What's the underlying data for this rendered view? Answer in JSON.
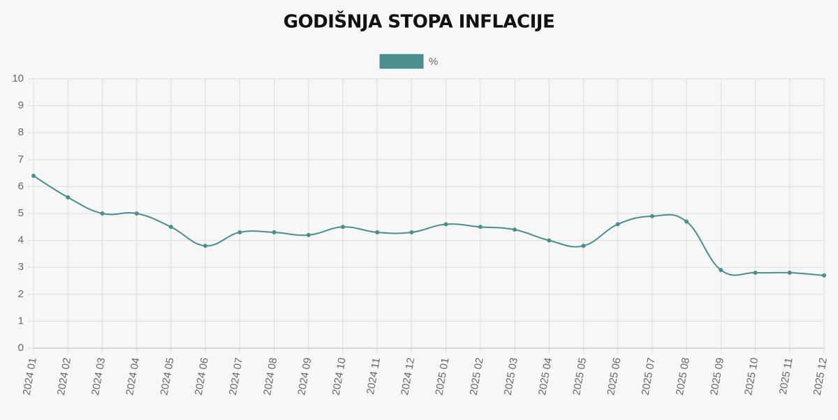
{
  "chart_data": {
    "type": "line",
    "title": "GODIŠNJA STOPA INFLACIJE",
    "categories": [
      "2024 01",
      "2024 02",
      "2024 03",
      "2024 04",
      "2024 05",
      "2024 06",
      "2024 07",
      "2024 08",
      "2024 09",
      "2024 10",
      "2024 11",
      "2024 12",
      "2025 01",
      "2025 02",
      "2025 03",
      "2025 04",
      "2025 05",
      "2025 06",
      "2025 07",
      "2025 08",
      "2025 09",
      "2025 10",
      "2025 11",
      "2025 12"
    ],
    "series": [
      {
        "name": "%",
        "color": "#4a8f8c",
        "values": [
          6.4,
          5.6,
          5.0,
          5.0,
          4.5,
          3.8,
          4.3,
          4.3,
          4.2,
          4.5,
          4.3,
          4.3,
          4.6,
          4.5,
          4.4,
          4.0,
          3.8,
          4.6,
          4.9,
          4.7,
          2.9,
          2.8,
          2.8,
          2.7
        ]
      }
    ],
    "ylim": [
      0,
      10
    ],
    "yticks": [
      0,
      1,
      2,
      3,
      4,
      5,
      6,
      7,
      8,
      9,
      10
    ],
    "grid": true,
    "legend": "top"
  }
}
